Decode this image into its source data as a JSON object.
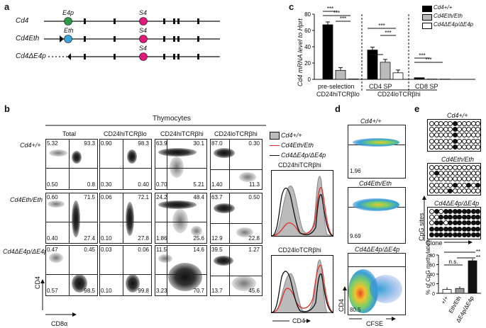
{
  "panel_a": {
    "label": "a",
    "alleles": [
      {
        "name": "Cd4",
        "elem1": "E4p",
        "elem2": "S4"
      },
      {
        "name": "Cd4Eth",
        "elem1": "Eth",
        "elem2": "S4"
      },
      {
        "name": "Cd4ΔE4p",
        "elem2": "S4"
      }
    ]
  },
  "panel_b": {
    "label": "b",
    "title": "Thymocytes",
    "columns": [
      "Total",
      "CD24hiTCRβlo",
      "CD24hiTCRβhi",
      "CD24loTCRβhi"
    ],
    "rows": [
      {
        "genotype": "Cd4+/+",
        "plots": [
          {
            "tl": "5.32",
            "tr": "93.3",
            "bl": "0.50",
            "br": "0.8"
          },
          {
            "tl": "0.90",
            "tr": "98.3",
            "bl": "0.30",
            "br": "0.40"
          },
          {
            "tl": "63.9",
            "tr": "30.1",
            "bl": "0.70",
            "br": "5.21"
          },
          {
            "tl": "87.0",
            "tr": "0.30",
            "bl": "1.40",
            "br": "11.3"
          }
        ]
      },
      {
        "genotype": "Cd4Eth/Eth",
        "plots": [
          {
            "tl": "0.60",
            "tr": "71.5",
            "bl": "0.40",
            "br": "27.4"
          },
          {
            "tl": "0.06",
            "tr": "72.1",
            "bl": "0.10",
            "br": "27.8"
          },
          {
            "tl": "24.2",
            "tr": "48.4",
            "bl": "1.86",
            "br": "25.6"
          },
          {
            "tl": "63.7",
            "tr": "0.50",
            "bl": "12.9",
            "br": "22.8"
          }
        ]
      },
      {
        "genotype": "Cd4ΔE4p/ΔE4p",
        "plots": [
          {
            "tl": "0.47",
            "tr": "0.45",
            "bl": "0.57",
            "br": "98.5"
          },
          {
            "tl": "0.03",
            "tr": "0.06",
            "bl": "0.10",
            "br": "99.8"
          },
          {
            "tl": "11.5",
            "tr": "14.6",
            "bl": "3.23",
            "br": "70.7"
          },
          {
            "tl": "39.5",
            "tr": "1.27",
            "bl": "13.7",
            "br": "45.6"
          }
        ]
      }
    ],
    "axis_y": "CD4",
    "axis_x": "CD8α",
    "legend": [
      {
        "label": "Cd4+/+",
        "color": "#aaaaaa"
      },
      {
        "label": "Cd4Eth/Eth",
        "color": "#e0302a"
      },
      {
        "label": "Cd4ΔE4p/ΔE4p",
        "color": "#111111"
      }
    ],
    "hist_titles": [
      "CD24hiTCRβhi",
      "CD24loTCRβhi"
    ],
    "hist_xlabel": "CD4"
  },
  "panel_c": {
    "label": "c",
    "chart_data": {
      "type": "bar",
      "ylabel": "Cd4 mRNA level to Hprt",
      "ylim": [
        0,
        80
      ],
      "yticks": [
        "0",
        "20",
        "40",
        "60",
        "80"
      ],
      "groups": [
        {
          "name": "pre-selection CD24hiTCRβlo",
          "values": [
            67,
            11,
            0.5
          ]
        },
        {
          "name": "CD4 SP",
          "values": [
            36,
            21,
            8
          ]
        },
        {
          "name": "CD8 SP",
          "values": [
            2,
            0.4,
            0.3
          ]
        }
      ],
      "series": [
        "Cd4+/+",
        "Cd4Eth/Eth",
        "Cd4ΔE4p/ΔE4p"
      ],
      "series_colors": [
        "#000000",
        "#bbbbbb",
        "#ffffff"
      ],
      "significance": [
        "***",
        "***",
        "***",
        "*",
        "***",
        "***",
        "***",
        "***"
      ],
      "group_label_line1": "pre-selection",
      "group_label_line2": "CD24hiTCRβlo",
      "sp_labels": [
        "CD4 SP",
        "CD8 SP"
      ],
      "bottom_label": "CD24loTCRβhi"
    }
  },
  "panel_d": {
    "label": "d",
    "plots": [
      {
        "genotype": "Cd4+/+",
        "value": "1.96"
      },
      {
        "genotype": "Cd4Eth/Eth",
        "value": "9.69"
      },
      {
        "genotype": "Cd4ΔE4p/ΔE4p",
        "value": "80.5"
      }
    ],
    "axis_y": "CD4",
    "axis_x": "CFSE"
  },
  "panel_e": {
    "label": "e",
    "grids": [
      "Cd4+/+",
      "Cd4Eth/Eth",
      "Cd4ΔE4p/ΔE4p"
    ],
    "ylabel": "CpG sites",
    "xlabel": "Clone",
    "chart_data": {
      "type": "bar",
      "categories": [
        "+/+",
        "Eth/Eth",
        "ΔE4p/ΔE4p"
      ],
      "values": [
        8,
        10,
        68
      ],
      "ylabel": "% of CpG methylation",
      "ylim": [
        0,
        80
      ],
      "yticks": [
        "0",
        "20",
        "40",
        "60",
        "80"
      ],
      "annotations": [
        "n.s.",
        "**",
        "**"
      ]
    }
  }
}
